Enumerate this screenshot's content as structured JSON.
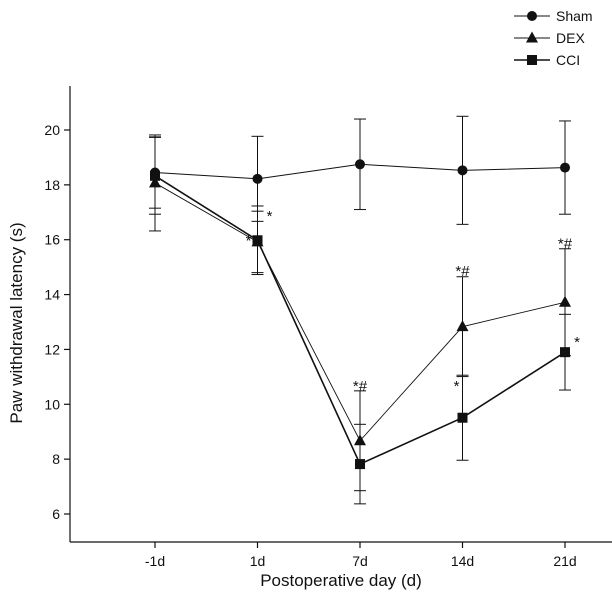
{
  "chart_data": {
    "type": "line",
    "title": "",
    "xlabel": "Postoperative day (d)",
    "ylabel": "Paw withdrawal latency (s)",
    "categories": [
      "-1d",
      "1d",
      "7d",
      "14d",
      "21d"
    ],
    "ylim": [
      5,
      21
    ],
    "yticks": [
      6,
      8,
      10,
      12,
      14,
      16,
      18,
      20
    ],
    "grid": false,
    "legend_position": "top-right",
    "series": [
      {
        "name": "Sham",
        "marker": "circle",
        "color": "#111111",
        "values": [
          18.45,
          18.22,
          18.75,
          18.53,
          18.63
        ],
        "error": [
          1.3,
          1.55,
          1.65,
          1.97,
          1.7
        ]
      },
      {
        "name": "DEX",
        "marker": "triangle",
        "color": "#111111",
        "values": [
          18.07,
          15.92,
          8.67,
          12.83,
          13.72
        ],
        "error": [
          1.75,
          1.12,
          1.82,
          1.82,
          1.95
        ]
      },
      {
        "name": "CCI",
        "marker": "square",
        "color": "#111111",
        "values": [
          18.33,
          15.98,
          7.82,
          9.51,
          11.9
        ],
        "error": [
          1.4,
          1.25,
          1.45,
          1.55,
          1.38
        ]
      }
    ],
    "annotations": [
      {
        "text": "*",
        "category": "1d",
        "y": 16.0
      },
      {
        "text": "*",
        "category": "1d",
        "y": 16.9
      },
      {
        "text": "*#",
        "category": "7d",
        "y": 10.7
      },
      {
        "text": "*#",
        "category": "14d",
        "y": 14.9
      },
      {
        "text": "*",
        "category": "14d",
        "y": 10.7
      },
      {
        "text": "*#",
        "category": "21d",
        "y": 15.9
      },
      {
        "text": "*",
        "category": "21d",
        "y": 12.3
      }
    ]
  }
}
